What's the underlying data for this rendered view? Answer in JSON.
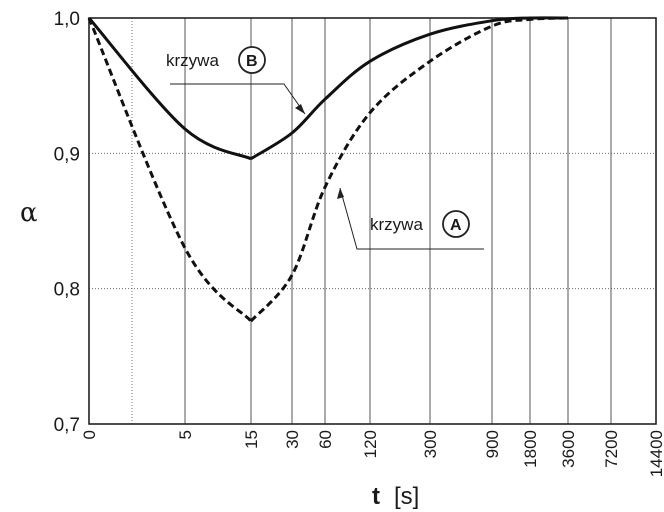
{
  "chart_data": {
    "type": "line",
    "xlabel_symbol": "t",
    "xlabel_unit": "[s]",
    "ylabel": "α",
    "ylim": [
      0.7,
      1.0
    ],
    "y_ticks": [
      "0,7",
      "0,8",
      "0,9",
      "1,0"
    ],
    "x_ticks": [
      "0",
      "5",
      "15",
      "30",
      "60",
      "120",
      "300",
      "900",
      "1800",
      "3600",
      "7200",
      "14400"
    ],
    "grid": true,
    "series": [
      {
        "name": "krzywa B",
        "style": "solid",
        "points": [
          [
            "0",
            1.0
          ],
          [
            "5",
            0.918
          ],
          [
            "15",
            0.896
          ],
          [
            "30",
            0.915
          ],
          [
            "60",
            0.94
          ],
          [
            "120",
            0.968
          ],
          [
            "300",
            0.988
          ],
          [
            "900",
            0.998
          ],
          [
            "1800",
            1.0
          ],
          [
            "3600",
            1.0
          ]
        ]
      },
      {
        "name": "krzywa A",
        "style": "dashed",
        "points": [
          [
            "0",
            1.0
          ],
          [
            "5",
            0.83
          ],
          [
            "15",
            0.776
          ],
          [
            "30",
            0.81
          ],
          [
            "60",
            0.875
          ],
          [
            "120",
            0.93
          ],
          [
            "300",
            0.968
          ],
          [
            "900",
            0.994
          ],
          [
            "1800",
            0.999
          ],
          [
            "3600",
            1.0
          ]
        ]
      }
    ],
    "annotations": [
      {
        "label": "krzywa",
        "badge": "B"
      },
      {
        "label": "krzywa",
        "badge": "A"
      }
    ]
  }
}
